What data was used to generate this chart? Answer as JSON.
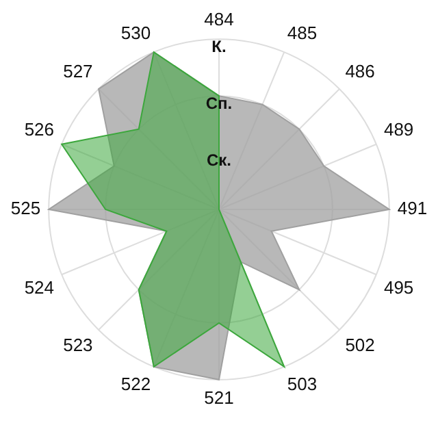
{
  "chart_data": {
    "type": "radar",
    "categories": [
      "484",
      "485",
      "486",
      "489",
      "491",
      "495",
      "502",
      "503",
      "521",
      "522",
      "523",
      "524",
      "525",
      "526",
      "527",
      "530"
    ],
    "series": [
      {
        "color": "#a0a0a0",
        "values": [
          2,
          2,
          2,
          2,
          3,
          1,
          2,
          1,
          3,
          3,
          2,
          1,
          3,
          2,
          3,
          3
        ]
      },
      {
        "color": "#3ca73c",
        "values": [
          2,
          0,
          0,
          0,
          0,
          0,
          0,
          3,
          2,
          3,
          2,
          1,
          2,
          3,
          2,
          3
        ]
      }
    ],
    "ylim": [
      0,
      3
    ],
    "yticks": [
      {
        "value": 1,
        "label": "Ск."
      },
      {
        "value": 2,
        "label": "Сп."
      },
      {
        "value": 3,
        "label": "К."
      }
    ],
    "grid": true,
    "legend": false,
    "marker": "none"
  }
}
